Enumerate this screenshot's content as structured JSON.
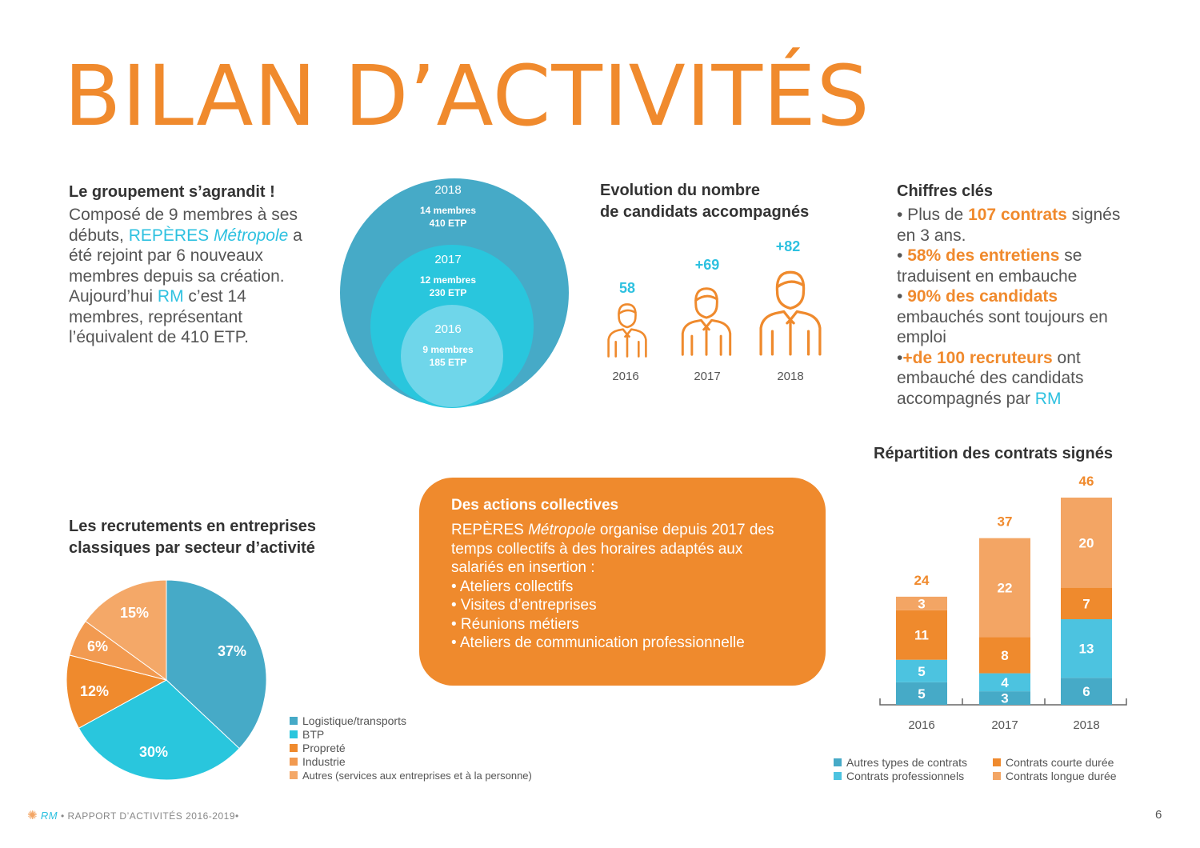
{
  "page": {
    "title": "BILAN D’ACTIVITÉS",
    "footer": {
      "brand": "RM",
      "text": "• RAPPORT D’ACTIVITÉS 2016-2019•",
      "page_number": "6"
    }
  },
  "groupement": {
    "heading": "Le groupement s’agrandit !",
    "lines": [
      [
        {
          "t": "Composé de 9 membres à ses",
          "s": ""
        }
      ],
      [
        {
          "t": "débuts, ",
          "s": ""
        },
        {
          "t": "REPÈRES ",
          "s": "teal"
        },
        {
          "t": "Métropole",
          "s": "teal-italic"
        },
        {
          "t": " a",
          "s": ""
        }
      ],
      [
        {
          "t": "été rejoint par 6 nouveaux",
          "s": ""
        }
      ],
      [
        {
          "t": "membres depuis sa création.",
          "s": ""
        }
      ],
      [
        {
          "t": "Aujourd’hui ",
          "s": ""
        },
        {
          "t": "RM",
          "s": "teal"
        },
        {
          "t": " c’est 14",
          "s": ""
        }
      ],
      [
        {
          "t": "membres, représentant",
          "s": ""
        }
      ],
      [
        {
          "t": "l’équivalent de 410 ETP.",
          "s": ""
        }
      ]
    ]
  },
  "circles": [
    {
      "year": "2018",
      "members": "14 membres",
      "etp": "410 ETP",
      "color": "#46aac7"
    },
    {
      "year": "2017",
      "members": "12 membres",
      "etp": "230 ETP",
      "color": "#29c6dd"
    },
    {
      "year": "2016",
      "members": "9 membres",
      "etp": "185 ETP",
      "color": "#6fd6ea"
    }
  ],
  "evolution": {
    "heading_line1": "Evolution du nombre",
    "heading_line2": "de candidats accompagnés",
    "items": [
      {
        "value": "58",
        "year": "2016"
      },
      {
        "value": "+69",
        "year": "2017"
      },
      {
        "value": "+82",
        "year": "2018"
      }
    ]
  },
  "chiffres": {
    "heading": "Chiffres clés",
    "lines": [
      [
        {
          "t": "• Plus de ",
          "s": ""
        },
        {
          "t": "107 contrats",
          "s": "ob"
        },
        {
          "t": " signés",
          "s": ""
        }
      ],
      [
        {
          "t": "en 3 ans.",
          "s": ""
        }
      ],
      [
        {
          "t": "• ",
          "s": ""
        },
        {
          "t": "58% des entretiens",
          "s": "ob"
        },
        {
          "t": " se",
          "s": ""
        }
      ],
      [
        {
          "t": "traduisent en embauche",
          "s": ""
        }
      ],
      [
        {
          "t": "• ",
          "s": ""
        },
        {
          "t": "90% des candidats",
          "s": "ob"
        }
      ],
      [
        {
          "t": "embauchés sont toujours en",
          "s": ""
        }
      ],
      [
        {
          "t": "emploi",
          "s": ""
        }
      ],
      [
        {
          "t": "•",
          "s": ""
        },
        {
          "t": "+de 100 recruteurs",
          "s": "ob"
        },
        {
          "t": " ont",
          "s": ""
        }
      ],
      [
        {
          "t": "embauché des candidats",
          "s": ""
        }
      ],
      [
        {
          "t": "accompagnés par ",
          "s": ""
        },
        {
          "t": "RM",
          "s": "teal"
        }
      ]
    ]
  },
  "actions": {
    "heading": "Des actions collectives",
    "lines": [
      [
        {
          "t": "REPÈRES ",
          "s": ""
        },
        {
          "t": "Métropole",
          "s": "italic"
        },
        {
          "t": " organise depuis 2017 des",
          "s": ""
        }
      ],
      [
        {
          "t": "temps collectifs à des horaires adaptés aux",
          "s": ""
        }
      ],
      [
        {
          "t": "salariés en insertion :",
          "s": ""
        }
      ],
      [
        {
          "t": "• Ateliers collectifs",
          "s": ""
        }
      ],
      [
        {
          "t": "• Visites d’entreprises",
          "s": ""
        }
      ],
      [
        {
          "t": "• Réunions métiers",
          "s": ""
        }
      ],
      [
        {
          "t": "• Ateliers de communication professionnelle",
          "s": ""
        }
      ]
    ]
  },
  "chart_data": [
    {
      "type": "pie",
      "title": "Les recrutements en entreprises classiques par secteur d’activité",
      "title_line1": "Les recrutements en entreprises",
      "title_line2": "classiques par secteur d’activité",
      "slices": [
        {
          "name": "Logistique/transports",
          "value": 37,
          "label": "37%",
          "color": "#46aac7"
        },
        {
          "name": "BTP",
          "value": 30,
          "label": "30%",
          "color": "#29c6dd"
        },
        {
          "name": "Propreté",
          "value": 12,
          "label": "12%",
          "color": "#ef8a2d"
        },
        {
          "name": "Industrie",
          "value": 6,
          "label": "6%",
          "color": "#f29a50"
        },
        {
          "name": "Autres (services aux entreprises et à la personne)",
          "value": 15,
          "label": "15%",
          "color": "#f4a868"
        }
      ],
      "legend": {
        "position": "bottom-right"
      }
    },
    {
      "type": "bar",
      "stacked": true,
      "title": "Répartition des contrats signés",
      "categories": [
        "2016",
        "2017",
        "2018"
      ],
      "totals": [
        "24",
        "37",
        "46"
      ],
      "ylim": [
        0,
        46
      ],
      "series": [
        {
          "name": "Autres types de contrats",
          "values": [
            5,
            3,
            6
          ],
          "color": "#46aac7"
        },
        {
          "name": "Contrats professionnels",
          "values": [
            5,
            4,
            13
          ],
          "color": "#4cc3e0"
        },
        {
          "name": "Contrats courte durée",
          "values": [
            11,
            8,
            7
          ],
          "color": "#ef8a2d"
        },
        {
          "name": "Contrats longue durée",
          "values": [
            3,
            22,
            20
          ],
          "color": "#f3a564"
        }
      ],
      "legend": {
        "position": "bottom"
      }
    }
  ]
}
